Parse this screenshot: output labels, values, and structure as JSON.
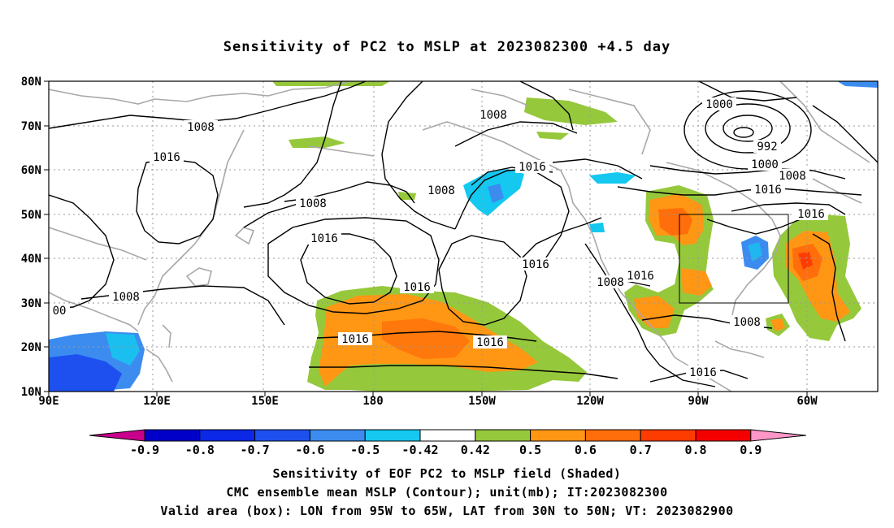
{
  "title": "Sensitivity of PC2 to MSLP at 2023082300 +4.5 day",
  "map": {
    "lon_labels": [
      "90E",
      "120E",
      "150E",
      "180",
      "150W",
      "120W",
      "90W",
      "60W"
    ],
    "lat_labels": [
      "80N",
      "70N",
      "60N",
      "50N",
      "40N",
      "30N",
      "20N",
      "10N"
    ],
    "grid": "dotted",
    "contour_color": "#000000",
    "coastline_color": "#a8a8a8",
    "isobar_labels": [
      "1008",
      "1016",
      "1016",
      "1008",
      "1008",
      "1016",
      "1008",
      "1016",
      "1016",
      "1016",
      "1016",
      "1016",
      "1008",
      "1016",
      "1016",
      "1000",
      "992",
      "1000",
      "1008",
      "1016",
      "1016",
      "1008",
      "1008",
      "00"
    ],
    "valid_box": "LON 95W-65W, LAT 30N-50N"
  },
  "colorbar": {
    "ticks": [
      "-0.9",
      "-0.8",
      "-0.7",
      "-0.6",
      "-0.5",
      "-0.42",
      "0.42",
      "0.5",
      "0.6",
      "0.7",
      "0.8",
      "0.9"
    ],
    "colors": [
      "#c8008c",
      "#0000c8",
      "#0a28e6",
      "#1e50f0",
      "#3c8cf0",
      "#14c8f0",
      "#ffffff",
      "#96c83c",
      "#ff9614",
      "#ff6e0a",
      "#ff3c00",
      "#f50000",
      "#ff96c8"
    ]
  },
  "caption": {
    "line1": "Sensitivity of EOF PC2 to MSLP field (Shaded)",
    "line2": "CMC ensemble mean MSLP (Contour); unit(mb); IT:2023082300",
    "line3": "Valid area (box): LON from 95W to 65W, LAT from 30N to 50N; VT: 2023082900"
  }
}
